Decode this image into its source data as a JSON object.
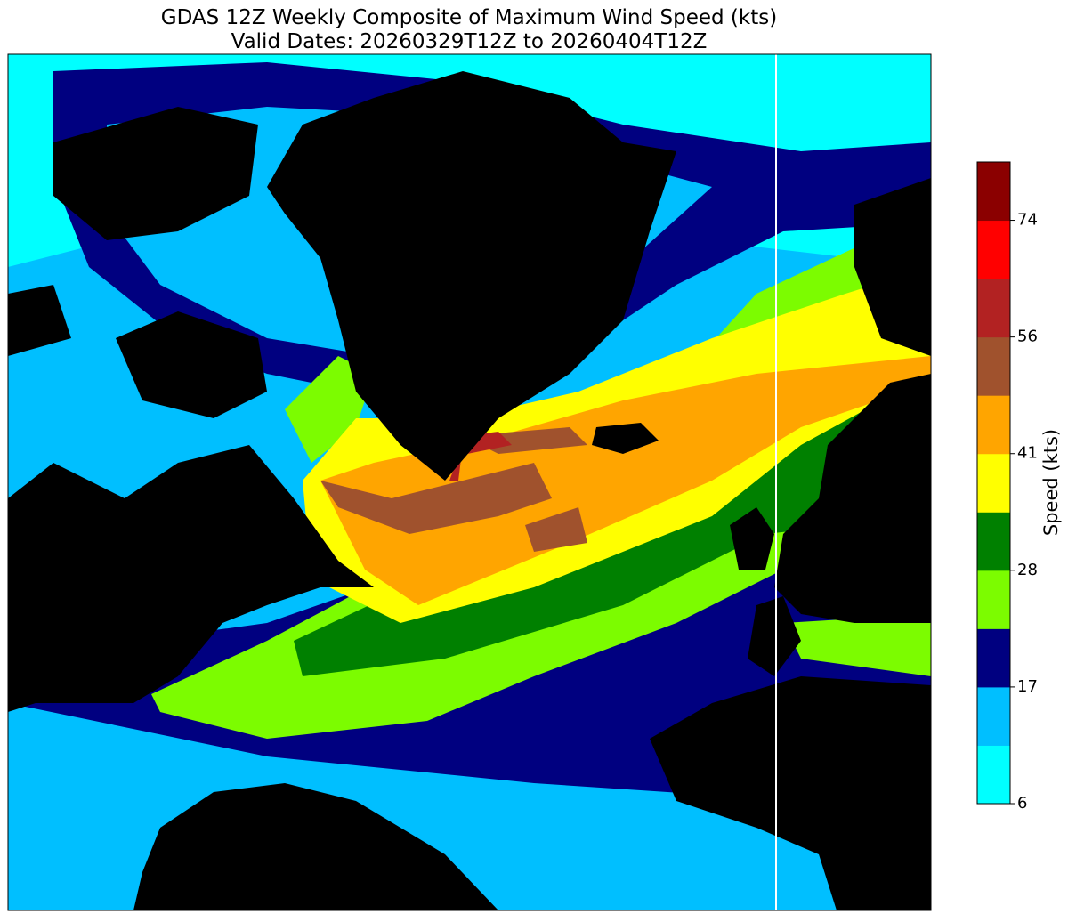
{
  "title": [
    "GDAS 12Z Weekly Composite of Maximum Wind Speed (kts)",
    "Valid Dates: 20260329T12Z to 20260404T12Z"
  ],
  "colorbar": {
    "label": "Speed (kts)",
    "colors": [
      "#00ffff",
      "#00bfff",
      "#000080",
      "#7cfc00",
      "#008000",
      "#ffff00",
      "#ffa500",
      "#a0522d",
      "#b22222",
      "#ff0000",
      "#8b0000"
    ],
    "ticks": [
      6,
      17,
      28,
      41,
      56,
      74
    ]
  }
}
